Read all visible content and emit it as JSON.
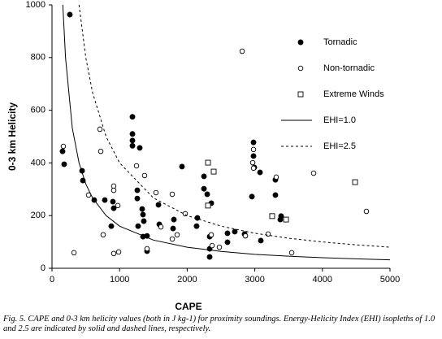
{
  "chart_data": {
    "type": "scatter",
    "xlabel": "CAPE",
    "ylabel": "0-3 km Helicity",
    "caption": "Fig. 5.  CAPE and 0-3 km helicity values (both in J kg-1) for proximity soundings.  Energy-Helicity Index (EHI) isopleths of 1.0 and 2.5 are indicated by solid and dashed lines, respectively.",
    "xlim": [
      0,
      5000
    ],
    "ylim": [
      0,
      1000
    ],
    "xticks": [
      0,
      1000,
      2000,
      3000,
      4000,
      5000
    ],
    "yticks": [
      0,
      200,
      400,
      600,
      800,
      1000
    ],
    "grid": false,
    "series": [
      {
        "name": "Tornadic",
        "type": "scatter",
        "marker": "circle-filled",
        "color": "#000000",
        "x": [
          264,
          156,
          180,
          445,
          457,
          625,
          781,
          901,
          913,
          877,
          1274,
          1298,
          1190,
          1190,
          1190,
          1190,
          1262,
          1262,
          1334,
          1346,
          1358,
          1406,
          1346,
          1406,
          1575,
          1587,
          1803,
          1791,
          1923,
          2151,
          2139,
          2248,
          2248,
          2356,
          2296,
          2332,
          2332,
          2332,
          2596,
          2596,
          2704,
          2849,
          2957,
          2981,
          2993,
          2981,
          3077,
          3089,
          3305,
          3305,
          3389,
          3377
        ],
        "values": [
          963,
          444,
          395,
          370,
          333,
          259,
          259,
          253,
          228,
          160,
          160,
          457,
          575,
          510,
          485,
          465,
          296,
          265,
          225,
          204,
          179,
          123,
          120,
          65,
          241,
          167,
          185,
          151,
          386,
          191,
          160,
          349,
          302,
          247,
          281,
          120,
          74,
          43,
          133,
          99,
          139,
          130,
          272,
          426,
          383,
          478,
          364,
          105,
          278,
          336,
          198,
          185
        ]
      },
      {
        "name": "Non-tornadic",
        "type": "scatter",
        "marker": "circle-open",
        "color": "#000000",
        "x": [
          168,
          325,
          541,
          709,
          721,
          757,
          913,
          913,
          974,
          986,
          913,
          1250,
          1370,
          1406,
          1538,
          1611,
          1779,
          1779,
          1851,
          1971,
          2356,
          2368,
          2476,
          2813,
          2861,
          2981,
          2969,
          2981,
          3197,
          3317,
          3546,
          3870,
          4651
        ],
        "values": [
          463,
          59,
          278,
          528,
          444,
          127,
          312,
          296,
          238,
          62,
          56,
          389,
          352,
          74,
          287,
          157,
          281,
          111,
          127,
          207,
          127,
          86,
          80,
          824,
          123,
          451,
          401,
          380,
          130,
          346,
          59,
          361,
          216
        ]
      },
      {
        "name": "Extreme Winds",
        "type": "scatter",
        "marker": "square-open",
        "color": "#000000",
        "x": [
          2308,
          2392,
          2308,
          3257,
          3462,
          4483
        ],
        "values": [
          401,
          367,
          238,
          198,
          185,
          327
        ]
      },
      {
        "name": "EHI=1.0",
        "type": "line",
        "style": "solid",
        "color": "#000000",
        "x": [
          160,
          200,
          300,
          400,
          500,
          600,
          800,
          1000,
          1500,
          2000,
          2500,
          3000,
          3500,
          4000,
          4500,
          5000
        ],
        "values": [
          1000,
          800,
          533,
          400,
          320,
          267,
          200,
          160,
          107,
          80,
          64,
          53,
          46,
          40,
          36,
          32
        ]
      },
      {
        "name": "EHI=2.5",
        "type": "line",
        "style": "dashed",
        "color": "#000000",
        "x": [
          400,
          500,
          600,
          800,
          1000,
          1500,
          2000,
          2500,
          3000,
          3500,
          4000,
          4500,
          5000
        ],
        "values": [
          1000,
          800,
          667,
          500,
          400,
          267,
          200,
          160,
          133,
          114,
          100,
          89,
          80
        ]
      }
    ]
  }
}
